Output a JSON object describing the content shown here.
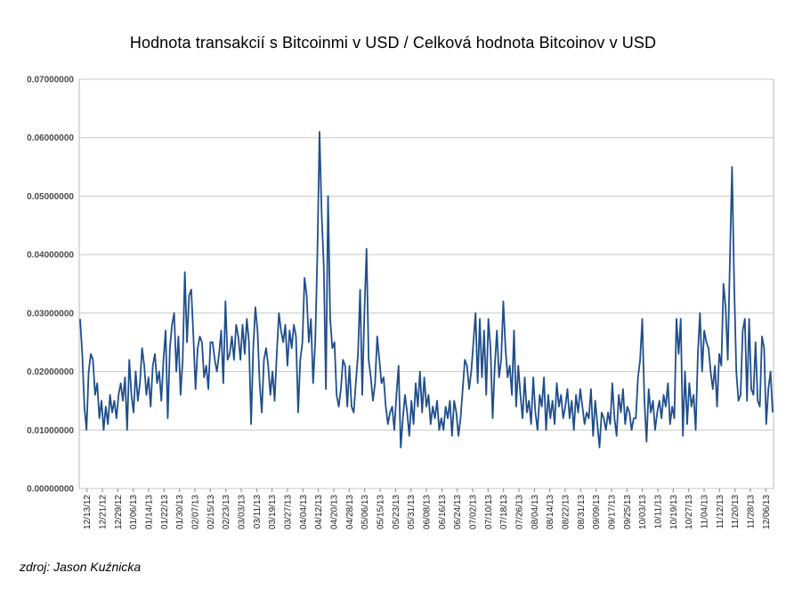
{
  "chart_data": {
    "type": "line",
    "title": "Hodnota transakcií s Bitcoinmi v USD / Celková hodnota Bitcoinov v USD",
    "xlabel": "",
    "ylabel": "",
    "ylim": [
      0,
      0.07
    ],
    "y_ticks": [
      "0.00000000",
      "0.01000000",
      "0.02000000",
      "0.03000000",
      "0.04000000",
      "0.05000000",
      "0.06000000",
      "0.07000000"
    ],
    "x_ticks": [
      "12/13/12",
      "12/21/12",
      "12/29/12",
      "01/06/13",
      "01/14/13",
      "01/22/13",
      "01/30/13",
      "02/07/13",
      "02/15/13",
      "02/23/13",
      "03/03/13",
      "03/11/13",
      "03/19/13",
      "03/27/13",
      "04/04/13",
      "04/12/13",
      "04/20/13",
      "04/28/13",
      "05/06/13",
      "05/15/13",
      "05/23/13",
      "05/31/13",
      "06/08/13",
      "06/16/13",
      "06/24/13",
      "07/02/13",
      "07/10/13",
      "07/18/13",
      "07/26/13",
      "08/04/13",
      "08/14/13",
      "08/22/13",
      "08/31/13",
      "09/09/13",
      "09/17/13",
      "09/25/13",
      "10/03/13",
      "10/11/13",
      "10/19/13",
      "10/27/13",
      "11/04/13",
      "11/12/13",
      "11/20/13",
      "11/28/13",
      "12/06/13"
    ],
    "grid": true,
    "legend": "none",
    "line_color": "#1f4e8c",
    "series": [
      {
        "values": [
          0.029,
          0.023,
          0.014,
          0.01,
          0.02,
          0.023,
          0.022,
          0.016,
          0.018,
          0.012,
          0.015,
          0.01,
          0.014,
          0.011,
          0.016,
          0.013,
          0.015,
          0.012,
          0.016,
          0.018,
          0.015,
          0.019,
          0.01,
          0.022,
          0.016,
          0.013,
          0.02,
          0.015,
          0.018,
          0.024,
          0.021,
          0.016,
          0.019,
          0.014,
          0.021,
          0.023,
          0.018,
          0.02,
          0.015,
          0.022,
          0.027,
          0.012,
          0.024,
          0.028,
          0.03,
          0.02,
          0.026,
          0.016,
          0.022,
          0.037,
          0.025,
          0.033,
          0.034,
          0.026,
          0.017,
          0.024,
          0.026,
          0.025,
          0.019,
          0.021,
          0.017,
          0.025,
          0.025,
          0.022,
          0.02,
          0.023,
          0.027,
          0.018,
          0.032,
          0.022,
          0.023,
          0.026,
          0.022,
          0.028,
          0.026,
          0.022,
          0.028,
          0.023,
          0.029,
          0.025,
          0.011,
          0.024,
          0.031,
          0.027,
          0.018,
          0.013,
          0.022,
          0.024,
          0.021,
          0.016,
          0.02,
          0.015,
          0.023,
          0.03,
          0.027,
          0.025,
          0.028,
          0.021,
          0.027,
          0.024,
          0.028,
          0.026,
          0.013,
          0.022,
          0.025,
          0.036,
          0.033,
          0.025,
          0.029,
          0.018,
          0.025,
          0.04,
          0.061,
          0.047,
          0.038,
          0.017,
          0.05,
          0.029,
          0.024,
          0.025,
          0.016,
          0.014,
          0.017,
          0.022,
          0.021,
          0.014,
          0.021,
          0.014,
          0.013,
          0.018,
          0.023,
          0.034,
          0.016,
          0.03,
          0.041,
          0.022,
          0.019,
          0.015,
          0.018,
          0.026,
          0.022,
          0.018,
          0.019,
          0.014,
          0.011,
          0.013,
          0.014,
          0.01,
          0.016,
          0.021,
          0.007,
          0.012,
          0.016,
          0.013,
          0.009,
          0.015,
          0.011,
          0.018,
          0.014,
          0.02,
          0.013,
          0.019,
          0.014,
          0.016,
          0.011,
          0.014,
          0.012,
          0.015,
          0.01,
          0.012,
          0.01,
          0.014,
          0.012,
          0.015,
          0.009,
          0.015,
          0.013,
          0.009,
          0.012,
          0.017,
          0.022,
          0.021,
          0.017,
          0.02,
          0.025,
          0.03,
          0.018,
          0.029,
          0.019,
          0.027,
          0.016,
          0.029,
          0.024,
          0.012,
          0.021,
          0.027,
          0.019,
          0.022,
          0.032,
          0.024,
          0.019,
          0.021,
          0.016,
          0.027,
          0.014,
          0.021,
          0.016,
          0.012,
          0.019,
          0.013,
          0.015,
          0.011,
          0.019,
          0.013,
          0.01,
          0.016,
          0.014,
          0.019,
          0.01,
          0.016,
          0.012,
          0.015,
          0.011,
          0.018,
          0.014,
          0.016,
          0.012,
          0.014,
          0.017,
          0.012,
          0.015,
          0.01,
          0.016,
          0.013,
          0.017,
          0.014,
          0.011,
          0.013,
          0.012,
          0.017,
          0.009,
          0.015,
          0.011,
          0.007,
          0.013,
          0.012,
          0.01,
          0.013,
          0.011,
          0.018,
          0.012,
          0.009,
          0.016,
          0.013,
          0.017,
          0.011,
          0.014,
          0.013,
          0.01,
          0.012,
          0.012,
          0.019,
          0.022,
          0.029,
          0.015,
          0.008,
          0.017,
          0.013,
          0.015,
          0.01,
          0.013,
          0.015,
          0.012,
          0.016,
          0.014,
          0.018,
          0.011,
          0.014,
          0.012,
          0.029,
          0.023,
          0.029,
          0.009,
          0.02,
          0.011,
          0.018,
          0.014,
          0.016,
          0.01,
          0.023,
          0.03,
          0.02,
          0.027,
          0.025,
          0.024,
          0.02,
          0.017,
          0.021,
          0.014,
          0.023,
          0.021,
          0.035,
          0.031,
          0.022,
          0.039,
          0.055,
          0.035,
          0.02,
          0.015,
          0.016,
          0.027,
          0.029,
          0.015,
          0.029,
          0.017,
          0.016,
          0.025,
          0.015,
          0.014,
          0.026,
          0.024,
          0.011,
          0.017,
          0.02,
          0.013
        ]
      }
    ]
  },
  "source_note": "zdroj: Jason Kuźnicka"
}
